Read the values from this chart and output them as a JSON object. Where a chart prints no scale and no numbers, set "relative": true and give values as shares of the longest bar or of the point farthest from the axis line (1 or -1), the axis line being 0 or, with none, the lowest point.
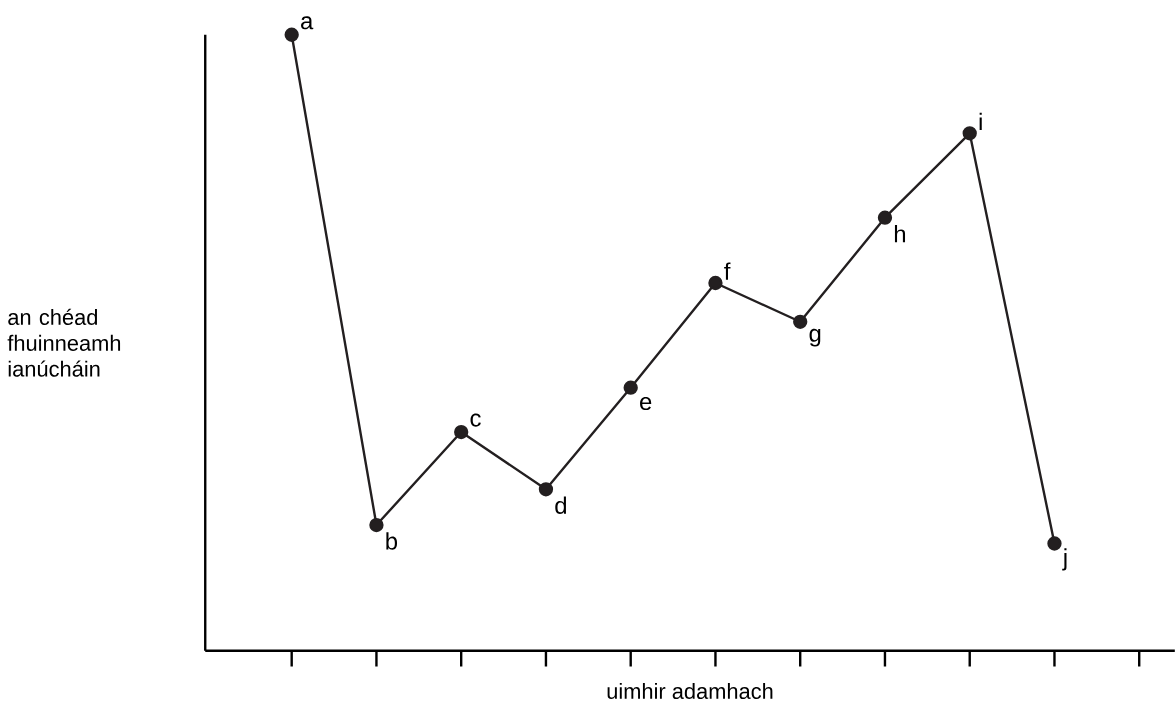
{
  "chart_data": {
    "type": "line",
    "relative": true,
    "xlabel": "uimhir adamhach",
    "ylabel": "an chéad fhuinneamh ianúcháin",
    "categories": [
      null,
      null,
      null,
      null,
      null,
      null,
      null,
      null,
      null,
      null,
      null
    ],
    "marker": "circle",
    "series": [
      {
        "color": "#231f20",
        "values": [
          1.0,
          0.204,
          0.355,
          0.262,
          0.427,
          0.597,
          0.534,
          0.703,
          0.84,
          0.174,
          null
        ]
      }
    ],
    "annotations": [
      "a",
      "b",
      "c",
      "d",
      "e",
      "f",
      "g",
      "h",
      "i",
      "j"
    ]
  }
}
